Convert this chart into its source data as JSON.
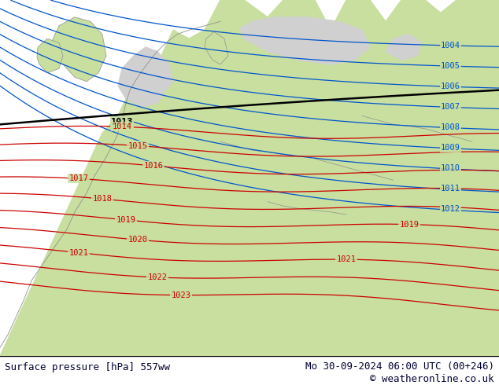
{
  "title_left": "Surface pressure [hPa] 557ww",
  "title_right": "Mo 30-09-2024 06:00 UTC (00+246)",
  "copyright": "© weatheronline.co.uk",
  "land_color": "#c8dfa0",
  "sea_color": "#d0d0d0",
  "text_color": "#000033",
  "blue_color": "#0055cc",
  "red_color": "#cc0000",
  "black_color": "#000000",
  "coast_color": "#909090",
  "blue_pressures": [
    1004,
    1005,
    1006,
    1007,
    1008,
    1009,
    1010,
    1011,
    1012
  ],
  "black_pressure": 1013,
  "red_pressures": [
    1014,
    1015,
    1016,
    1017,
    1018,
    1019,
    1020,
    1021,
    1022,
    1023
  ],
  "font_size": 9,
  "label_font_size": 7.5
}
